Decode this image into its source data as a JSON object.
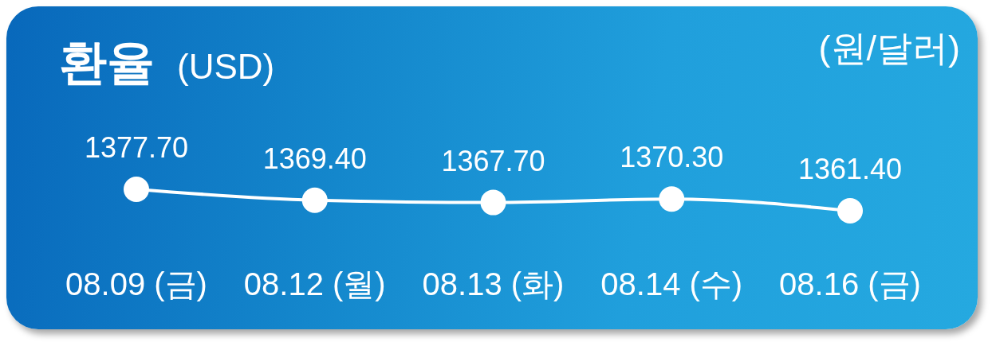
{
  "chart_data": {
    "type": "line",
    "title": "환율",
    "subtitle": "(USD)",
    "annotations": [
      "(원/달러)"
    ],
    "categories": [
      "08.09 (금)",
      "08.12 (월)",
      "08.13 (화)",
      "08.14 (수)",
      "08.16 (금)"
    ],
    "series": [
      {
        "color": "#ffffff",
        "values": [
          1377.7,
          1369.4,
          1367.7,
          1370.3,
          1361.4
        ],
        "value_labels": [
          "1377.70",
          "1369.40",
          "1367.70",
          "1370.30",
          "1361.40"
        ]
      }
    ],
    "tick_labels": "x",
    "marker": "circle",
    "line_style": "solid"
  }
}
